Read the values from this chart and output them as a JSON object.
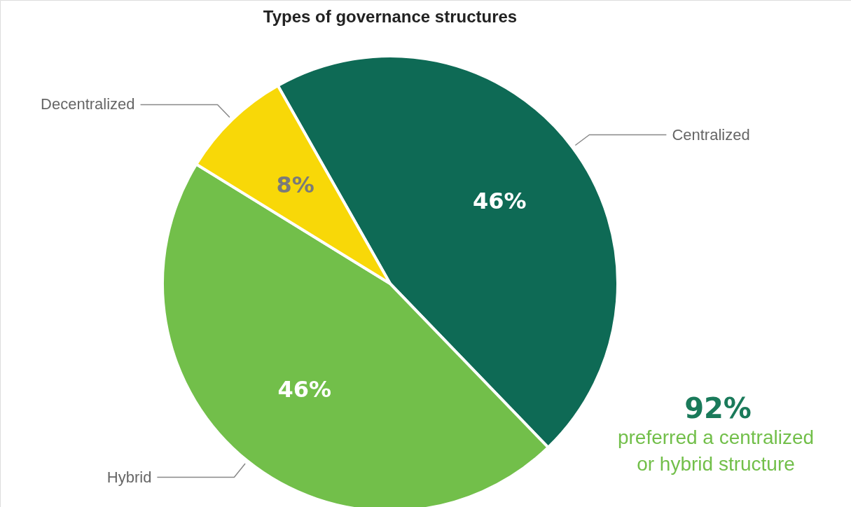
{
  "chart_data": {
    "type": "pie",
    "title": "Types of governance structures",
    "categories": [
      "Centralized",
      "Hybrid",
      "Decentralized"
    ],
    "values": [
      46,
      46,
      8
    ],
    "colors": [
      "#0e6a55",
      "#72bf4a",
      "#f8d808"
    ],
    "value_labels": [
      "46%",
      "46%",
      "8%"
    ],
    "annotations": [
      "92%",
      "preferred a centralized or hybrid structure"
    ]
  }
}
